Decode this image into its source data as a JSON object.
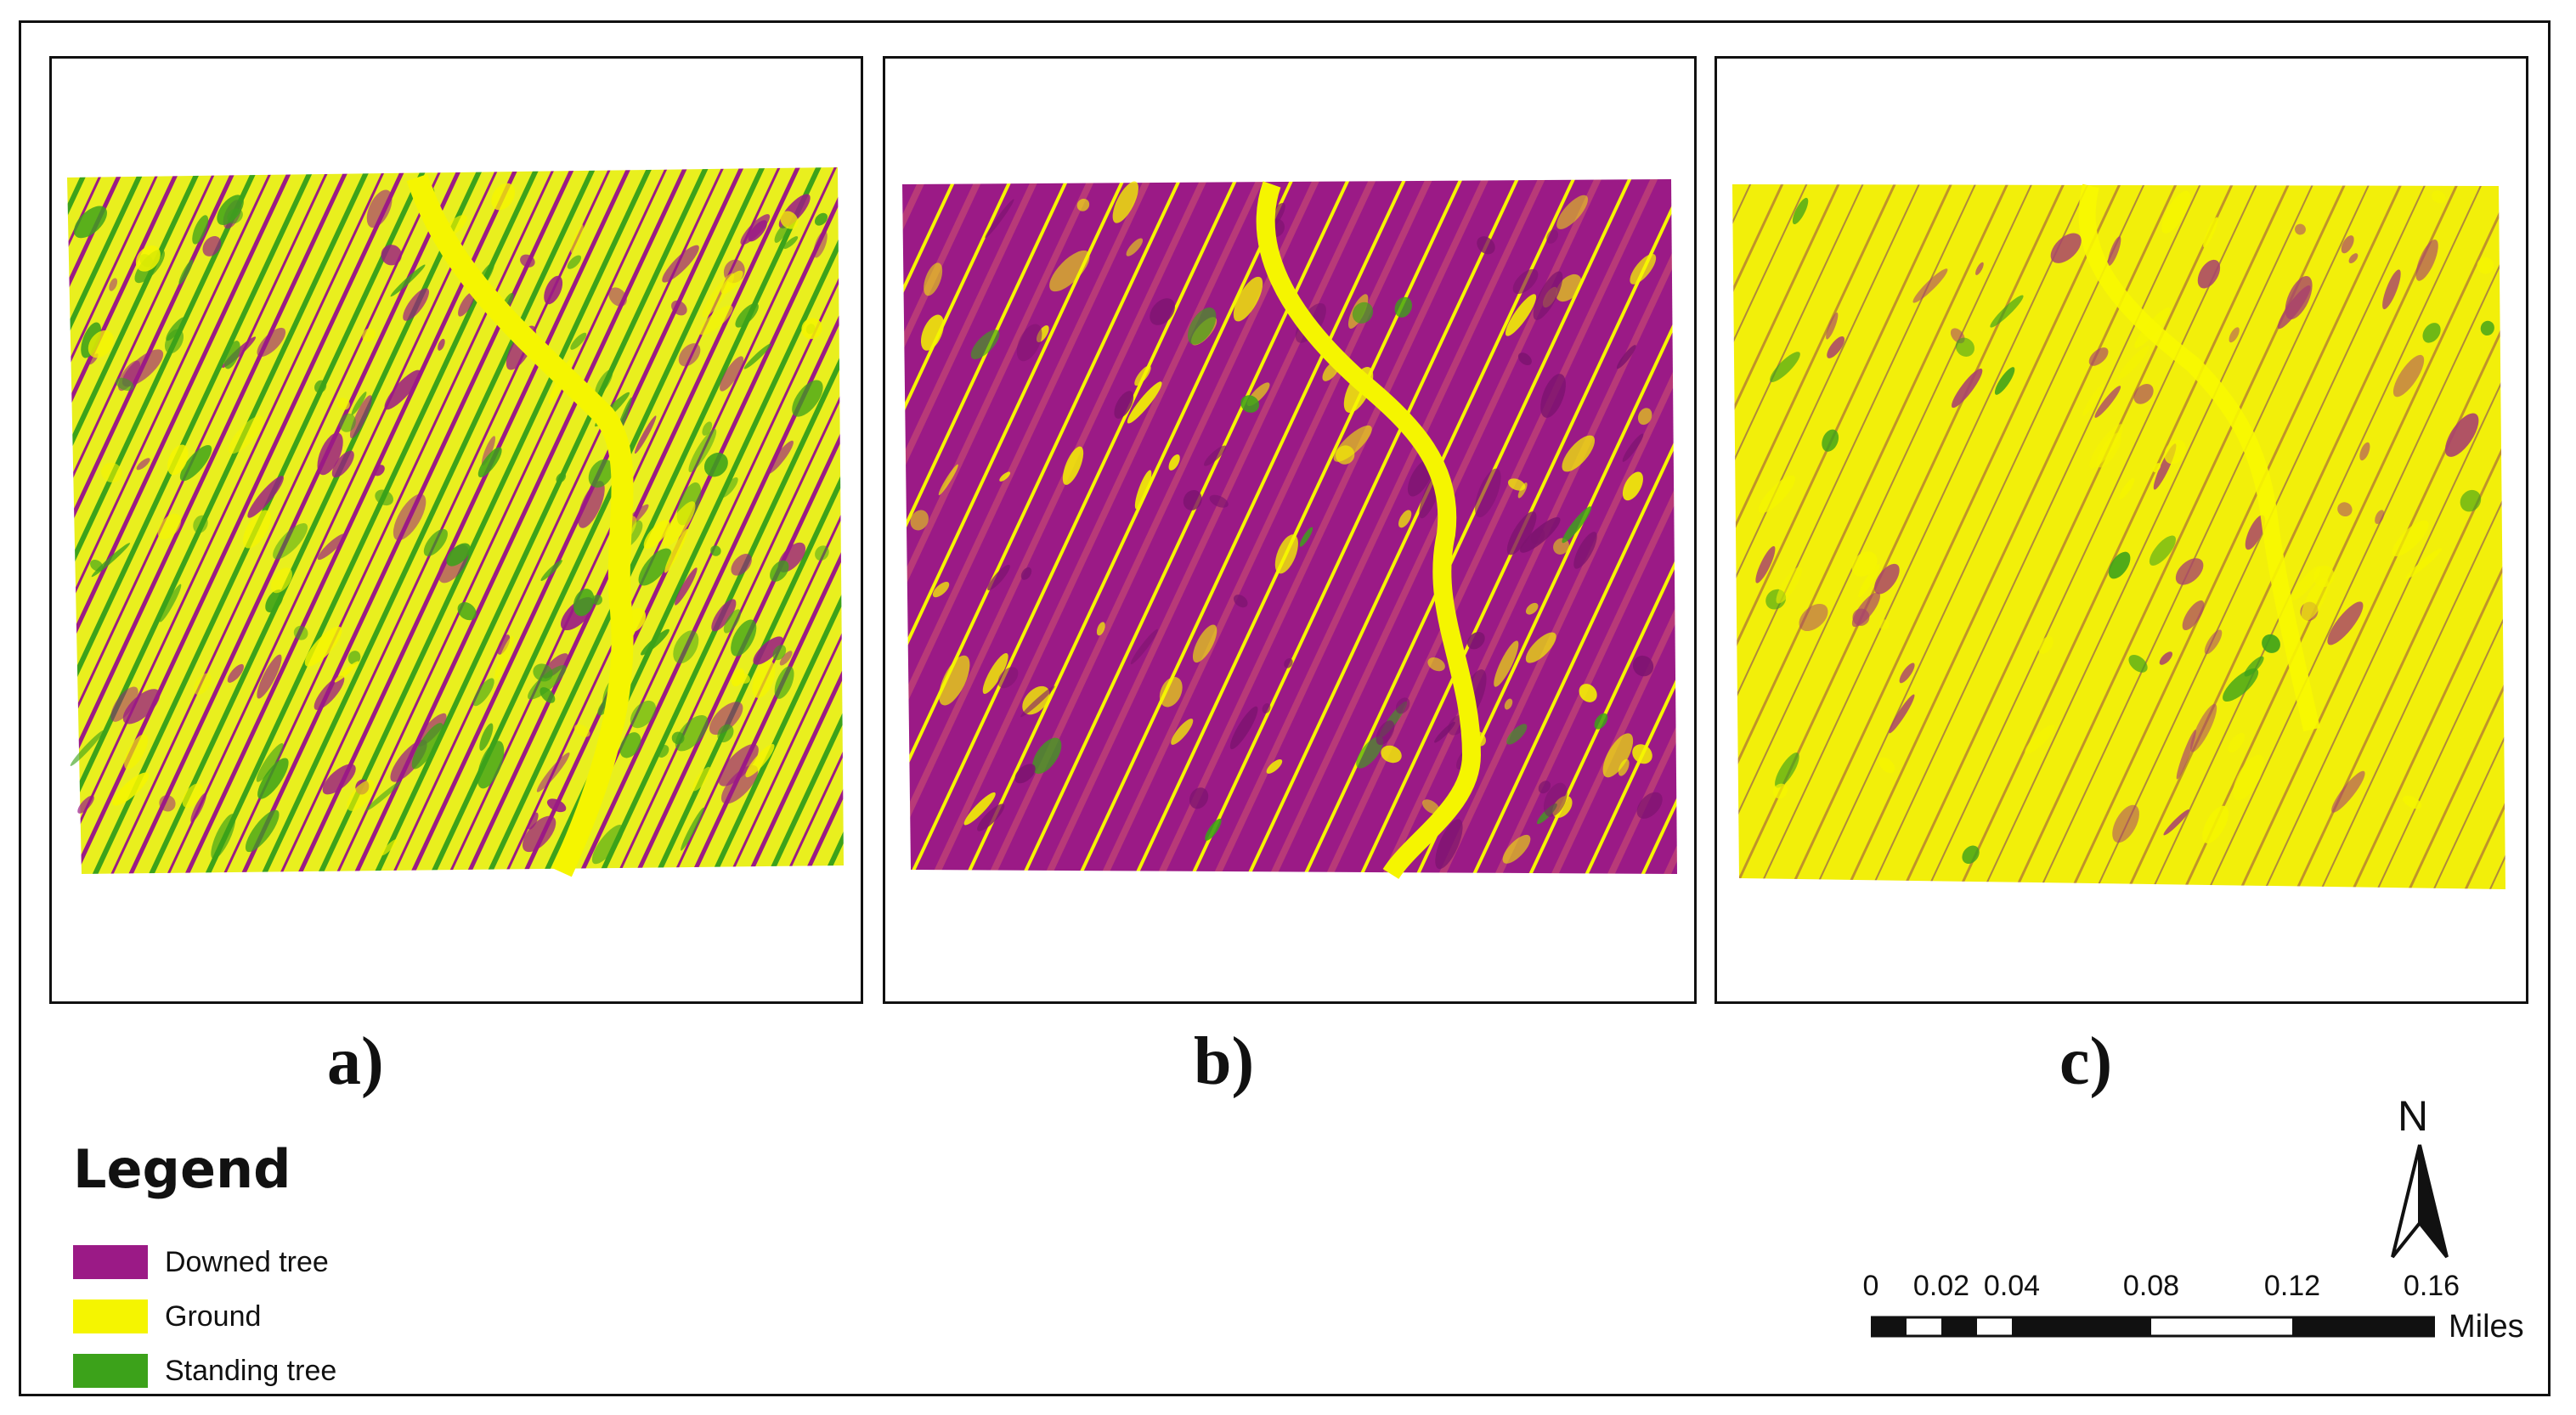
{
  "panels": [
    {
      "id": "a",
      "label": "a)",
      "dominant": "mixed"
    },
    {
      "id": "b",
      "label": "b)",
      "dominant": "downed"
    },
    {
      "id": "c",
      "label": "c)",
      "dominant": "ground"
    }
  ],
  "legend": {
    "title": "Legend",
    "items": [
      {
        "label": "Downed tree",
        "color": "#9b1a86"
      },
      {
        "label": "Ground",
        "color": "#f5f500"
      },
      {
        "label": "Standing tree",
        "color": "#3ca21a"
      }
    ]
  },
  "north_arrow": {
    "label": "N"
  },
  "scale_bar": {
    "ticks": [
      "0",
      "0.02",
      "0.04",
      "0.08",
      "0.12",
      "0.16"
    ],
    "units": "Miles"
  },
  "colors": {
    "downed_tree": "#9b1a86",
    "ground": "#f5f500",
    "standing_tree": "#3ca21a",
    "frame": "#111111"
  }
}
